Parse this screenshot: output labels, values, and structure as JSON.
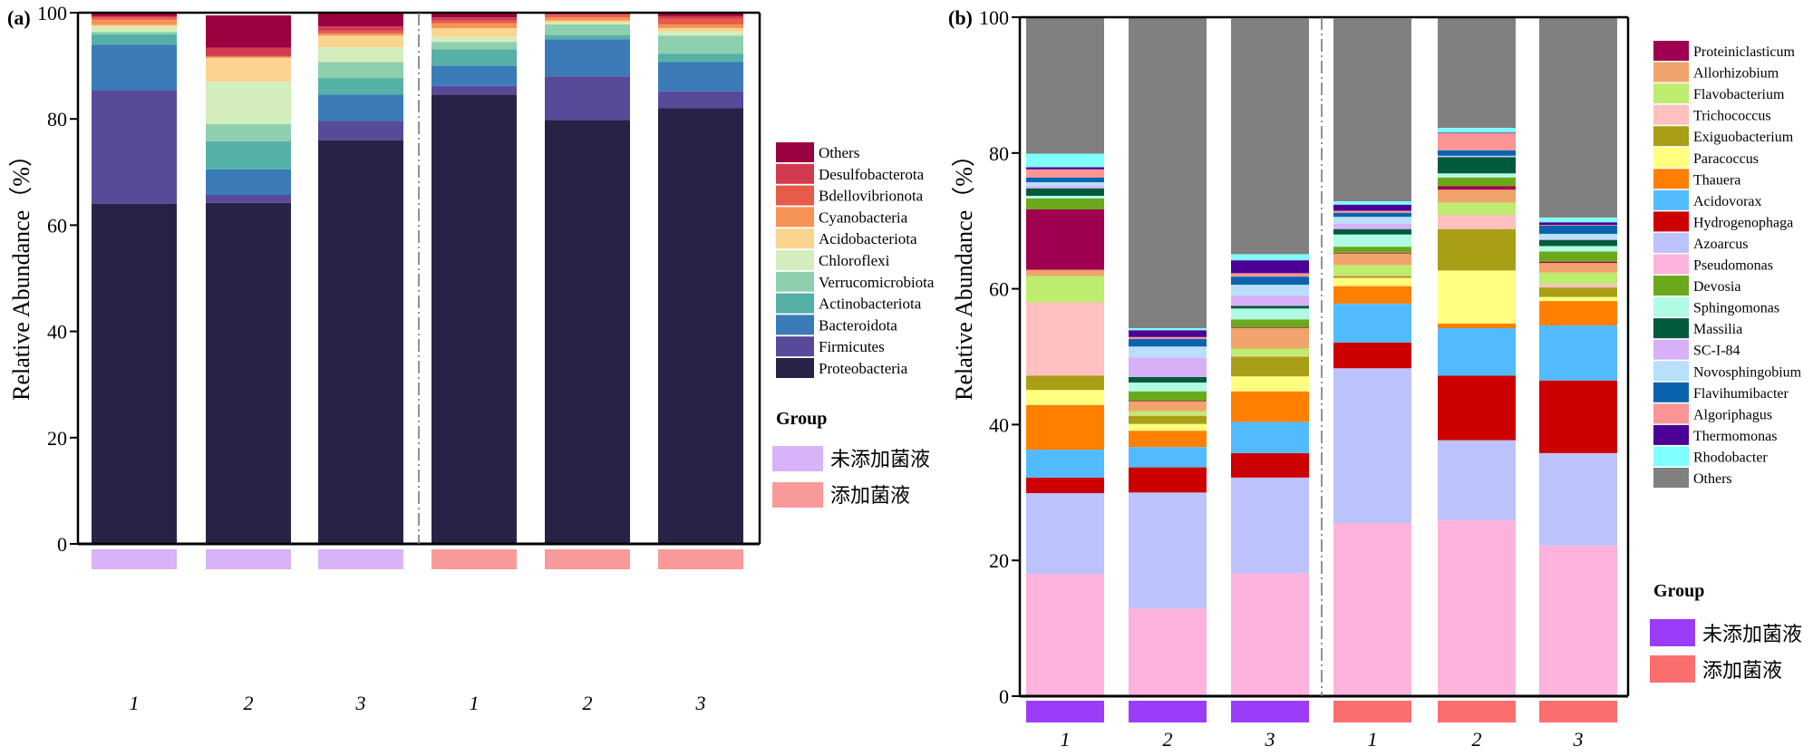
{
  "chart_data": [
    {
      "panel_label": "(a)",
      "type": "bar",
      "stacked": true,
      "title": "",
      "xlabel": "",
      "ylabel": "Relative Abundance（%）",
      "ylim": [
        0,
        100
      ],
      "yticks": [
        0,
        20,
        40,
        60,
        80,
        100
      ],
      "categories": [
        "1",
        "2",
        "3",
        "1",
        "2",
        "3"
      ],
      "groups": [
        "未添加菌液",
        "未添加菌液",
        "未添加菌液",
        "添加菌液",
        "添加菌液",
        "添加菌液"
      ],
      "group_separator_after_index": 2,
      "legend_title": "",
      "legend_position": "right",
      "series": [
        {
          "name": "Proteobacteria",
          "color": "#282346",
          "values": [
            64.0,
            64.2,
            76.0,
            84.6,
            79.8,
            82.0
          ]
        },
        {
          "name": "Firmicutes",
          "color": "#584a99",
          "values": [
            21.4,
            1.5,
            3.6,
            1.6,
            8.2,
            3.2
          ]
        },
        {
          "name": "Bacteroidota",
          "color": "#3a7bb8",
          "values": [
            8.6,
            4.8,
            5.0,
            3.8,
            7.0,
            5.5
          ]
        },
        {
          "name": "Actinobacteriota",
          "color": "#55b0a6",
          "values": [
            1.9,
            5.3,
            3.1,
            3.1,
            0.8,
            1.6
          ]
        },
        {
          "name": "Verrucomicrobiota",
          "color": "#8ecfae",
          "values": [
            0.5,
            3.2,
            3.0,
            1.4,
            2.0,
            3.4
          ]
        },
        {
          "name": "Chloroflexi",
          "color": "#d3edbc",
          "values": [
            0.9,
            8.0,
            2.8,
            1.0,
            0.3,
            0.8
          ]
        },
        {
          "name": "Acidobacteriota",
          "color": "#fbd590",
          "values": [
            0.4,
            4.5,
            2.2,
            1.6,
            0.4,
            0.6
          ]
        },
        {
          "name": "Cyanobacteria",
          "color": "#f59357",
          "values": [
            1.0,
            0.2,
            0.4,
            0.9,
            0.6,
            0.7
          ]
        },
        {
          "name": "Bdellovibrionota",
          "color": "#e65c48",
          "values": [
            0.4,
            0.2,
            0.5,
            0.5,
            0.5,
            1.1
          ]
        },
        {
          "name": "Desulfobacterota",
          "color": "#d23a4f",
          "values": [
            0.3,
            1.5,
            0.8,
            0.6,
            0.2,
            0.5
          ]
        },
        {
          "name": "Others",
          "color": "#9b0040",
          "values": [
            0.6,
            6.1,
            2.6,
            0.9,
            0.2,
            0.6
          ]
        }
      ],
      "group_legend": {
        "title": "Group",
        "items": [
          {
            "label": "未添加菌液",
            "color": "#d8b3f7"
          },
          {
            "label": "添加菌液",
            "color": "#f99a9a"
          }
        ]
      }
    },
    {
      "panel_label": "(b)",
      "type": "bar",
      "stacked": true,
      "title": "",
      "xlabel": "",
      "ylabel": "Relative Abundance（%）",
      "ylim": [
        0,
        100
      ],
      "yticks": [
        0,
        20,
        40,
        60,
        80,
        100
      ],
      "categories": [
        "1",
        "2",
        "3",
        "1",
        "2",
        "3"
      ],
      "groups": [
        "未添加菌液",
        "未添加菌液",
        "未添加菌液",
        "添加菌液",
        "添加菌液",
        "添加菌液"
      ],
      "group_separator_after_index": 2,
      "legend_position": "right",
      "series": [
        {
          "name": "Pseudomonas",
          "color": "#fdb3dc",
          "values": [
            18.0,
            12.9,
            18.1,
            25.5,
            25.9,
            22.2
          ]
        },
        {
          "name": "Azoarcus",
          "color": "#bcc2fc",
          "values": [
            11.9,
            17.1,
            14.1,
            22.8,
            11.8,
            13.6
          ]
        },
        {
          "name": "Hydrogenophaga",
          "color": "#cc0000",
          "values": [
            2.3,
            3.7,
            3.6,
            3.8,
            9.5,
            10.7
          ]
        },
        {
          "name": "Acidovorax",
          "color": "#52bbfd",
          "values": [
            4.1,
            3.0,
            4.6,
            5.7,
            7.0,
            8.1
          ]
        },
        {
          "name": "Thauera",
          "color": "#ff8000",
          "values": [
            6.6,
            2.4,
            4.5,
            2.6,
            0.7,
            3.6
          ]
        },
        {
          "name": "Paracoccus",
          "color": "#ffff80",
          "values": [
            2.2,
            1.0,
            2.2,
            1.2,
            7.8,
            0.6
          ]
        },
        {
          "name": "Exiguobacterium",
          "color": "#a89f16",
          "values": [
            2.1,
            1.2,
            2.9,
            0.3,
            6.1,
            1.4
          ]
        },
        {
          "name": "Trichococcus",
          "color": "#ffc0c0",
          "values": [
            10.8,
            0.1,
            0.1,
            0.1,
            2.1,
            0.5
          ]
        },
        {
          "name": "Flavobacterium",
          "color": "#bdec6e",
          "values": [
            3.9,
            0.6,
            1.1,
            1.5,
            1.8,
            1.7
          ]
        },
        {
          "name": "Allorhizobium",
          "color": "#f0a46b",
          "values": [
            0.9,
            1.4,
            3.0,
            1.7,
            1.9,
            1.4
          ]
        },
        {
          "name": "Proteiniclasticum",
          "color": "#a00050",
          "values": [
            8.9,
            0.1,
            0.1,
            0.1,
            0.5,
            0.2
          ]
        },
        {
          "name": "Devosia",
          "color": "#6ba81b",
          "values": [
            1.6,
            1.4,
            1.2,
            0.9,
            1.3,
            1.5
          ]
        },
        {
          "name": "Sphingomonas",
          "color": "#b0fbe3",
          "values": [
            0.4,
            1.3,
            1.6,
            1.8,
            0.6,
            0.8
          ]
        },
        {
          "name": "Massilia",
          "color": "#005a3c",
          "values": [
            1.1,
            0.8,
            0.4,
            0.8,
            2.4,
            0.9
          ]
        },
        {
          "name": "SC-I-84",
          "color": "#d8b0f8",
          "values": [
            0.3,
            2.9,
            1.5,
            0.8,
            0.1,
            0.1
          ]
        },
        {
          "name": "Novosphingobium",
          "color": "#b8e0fb",
          "values": [
            0.6,
            1.6,
            1.6,
            1.0,
            0.1,
            0.8
          ]
        },
        {
          "name": "Flavihumibacter",
          "color": "#0a63ad",
          "values": [
            0.7,
            1.1,
            1.2,
            0.6,
            0.8,
            1.2
          ]
        },
        {
          "name": "Algoriphagus",
          "color": "#fb9595",
          "values": [
            1.2,
            0.3,
            0.5,
            0.3,
            2.5,
            0.1
          ]
        },
        {
          "name": "Thermomonas",
          "color": "#4b0096",
          "values": [
            0.3,
            1.0,
            1.9,
            0.9,
            0.1,
            0.4
          ]
        },
        {
          "name": "Rhodobacter",
          "color": "#80ffff",
          "values": [
            2.0,
            0.3,
            0.9,
            0.5,
            0.7,
            0.7
          ]
        },
        {
          "name": "Others",
          "color": "#808080",
          "values": [
            20.2,
            45.8,
            34.7,
            26.9,
            16.3,
            29.6
          ]
        }
      ],
      "legend_order": [
        "Proteiniclasticum",
        "Allorhizobium",
        "Flavobacterium",
        "Trichococcus",
        "Exiguobacterium",
        "Paracoccus",
        "Thauera",
        "Acidovorax",
        "Hydrogenophaga",
        "Azoarcus",
        "Pseudomonas",
        "Devosia",
        "Sphingomonas",
        "Massilia",
        "SC-I-84",
        "Novosphingobium",
        "Flavihumibacter",
        "Algoriphagus",
        "Thermomonas",
        "Rhodobacter",
        "Others"
      ],
      "group_legend": {
        "title": "Group",
        "items": [
          {
            "label": "未添加菌液",
            "color": "#9b3df8"
          },
          {
            "label": "添加菌液",
            "color": "#fb6e6e"
          }
        ]
      }
    }
  ]
}
